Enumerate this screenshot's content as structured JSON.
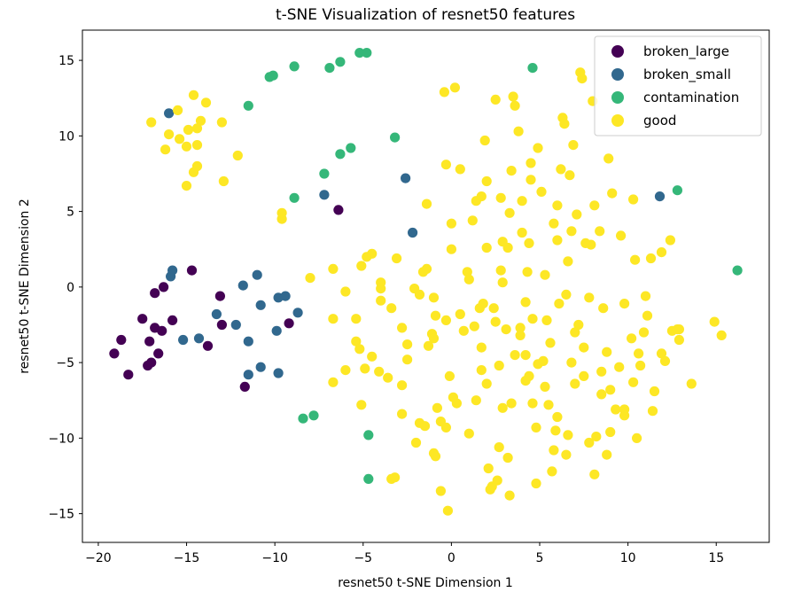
{
  "chart_data": {
    "type": "scatter",
    "title": "t-SNE Visualization of resnet50 features",
    "xlabel": "resnet50 t-SNE Dimension 1",
    "ylabel": "resnet50 t-SNE Dimension 2",
    "xlim": [
      -20.9,
      18.0
    ],
    "ylim": [
      -16.9,
      17.0
    ],
    "xticks": [
      -20,
      -15,
      -10,
      -5,
      0,
      5,
      10,
      15
    ],
    "yticks": [
      -15,
      -10,
      -5,
      0,
      5,
      10,
      15
    ],
    "grid": false,
    "legend_position": "top-right",
    "series": [
      {
        "name": "broken_large",
        "color": "#440154",
        "points": [
          [
            -19.1,
            -4.4
          ],
          [
            -18.7,
            -3.5
          ],
          [
            -18.3,
            -5.8
          ],
          [
            -17.5,
            -2.1
          ],
          [
            -17.2,
            -5.2
          ],
          [
            -17.1,
            -3.6
          ],
          [
            -17.0,
            -5.0
          ],
          [
            -16.8,
            -2.7
          ],
          [
            -16.8,
            -0.4
          ],
          [
            -16.6,
            -4.4
          ],
          [
            -16.4,
            -2.9
          ],
          [
            -16.3,
            0.0
          ],
          [
            -15.8,
            -2.2
          ],
          [
            -14.7,
            1.1
          ],
          [
            -13.8,
            -3.9
          ],
          [
            -13.1,
            -0.6
          ],
          [
            -13.0,
            -2.5
          ],
          [
            -11.7,
            -6.6
          ],
          [
            -9.2,
            -2.4
          ],
          [
            -6.4,
            5.1
          ]
        ]
      },
      {
        "name": "broken_small",
        "color": "#31688e",
        "points": [
          [
            -16.0,
            11.5
          ],
          [
            -15.9,
            0.7
          ],
          [
            -15.8,
            1.1
          ],
          [
            -15.2,
            -3.5
          ],
          [
            -14.3,
            -3.4
          ],
          [
            -13.3,
            -1.8
          ],
          [
            -12.2,
            -2.5
          ],
          [
            -11.8,
            0.1
          ],
          [
            -11.5,
            -3.6
          ],
          [
            -11.5,
            -5.8
          ],
          [
            -11.0,
            0.8
          ],
          [
            -10.8,
            -1.2
          ],
          [
            -10.8,
            -5.3
          ],
          [
            -9.9,
            -2.9
          ],
          [
            -9.8,
            -5.7
          ],
          [
            -9.8,
            -0.7
          ],
          [
            -9.4,
            -0.6
          ],
          [
            -8.7,
            -1.7
          ],
          [
            -7.2,
            6.1
          ],
          [
            -2.6,
            7.2
          ],
          [
            -2.2,
            3.6
          ],
          [
            11.8,
            6.0
          ]
        ]
      },
      {
        "name": "contamination",
        "color": "#35b779",
        "points": [
          [
            -11.5,
            12.0
          ],
          [
            -10.3,
            13.9
          ],
          [
            -10.1,
            14.0
          ],
          [
            -8.9,
            14.6
          ],
          [
            -8.9,
            5.9
          ],
          [
            -8.4,
            -8.7
          ],
          [
            -7.8,
            -8.5
          ],
          [
            -7.2,
            7.5
          ],
          [
            -6.9,
            14.5
          ],
          [
            -6.3,
            8.8
          ],
          [
            -6.3,
            14.9
          ],
          [
            -5.7,
            9.2
          ],
          [
            -5.2,
            15.5
          ],
          [
            -4.8,
            15.5
          ],
          [
            -4.7,
            -9.8
          ],
          [
            -4.7,
            -12.7
          ],
          [
            -3.2,
            9.9
          ],
          [
            4.6,
            14.5
          ],
          [
            12.8,
            6.4
          ],
          [
            16.2,
            1.1
          ]
        ]
      },
      {
        "name": "good",
        "color": "#fde725",
        "points": [
          [
            -17.0,
            10.9
          ],
          [
            -16.2,
            9.1
          ],
          [
            -16.0,
            10.1
          ],
          [
            -15.5,
            11.7
          ],
          [
            -15.4,
            9.8
          ],
          [
            -15.0,
            6.7
          ],
          [
            -15.0,
            9.3
          ],
          [
            -14.9,
            10.4
          ],
          [
            -14.6,
            12.7
          ],
          [
            -14.4,
            9.4
          ],
          [
            -14.4,
            10.5
          ],
          [
            -14.6,
            7.6
          ],
          [
            -14.4,
            8.0
          ],
          [
            -14.2,
            11.0
          ],
          [
            -13.9,
            12.2
          ],
          [
            -13.0,
            10.9
          ],
          [
            -12.9,
            7.0
          ],
          [
            -12.1,
            8.7
          ],
          [
            -9.6,
            4.5
          ],
          [
            -9.6,
            4.9
          ],
          [
            -8.0,
            0.6
          ],
          [
            -6.7,
            -2.1
          ],
          [
            -6.7,
            1.2
          ],
          [
            -6.7,
            -6.3
          ],
          [
            -6.0,
            -5.5
          ],
          [
            -6.0,
            -0.3
          ],
          [
            -5.4,
            -2.1
          ],
          [
            -5.4,
            -3.6
          ],
          [
            -5.2,
            -4.1
          ],
          [
            -5.1,
            1.4
          ],
          [
            -5.1,
            -7.8
          ],
          [
            -4.9,
            -5.4
          ],
          [
            -4.8,
            2.0
          ],
          [
            -4.5,
            2.2
          ],
          [
            -4.5,
            -4.6
          ],
          [
            -4.1,
            -5.6
          ],
          [
            -4.0,
            -0.1
          ],
          [
            -4.0,
            0.3
          ],
          [
            -4.0,
            -0.9
          ],
          [
            -3.4,
            -1.4
          ],
          [
            -3.4,
            -12.7
          ],
          [
            -3.1,
            1.9
          ],
          [
            -3.2,
            -12.6
          ],
          [
            -2.8,
            -2.7
          ],
          [
            -2.8,
            -8.4
          ],
          [
            -2.5,
            -4.8
          ],
          [
            -2.5,
            -3.8
          ],
          [
            -2.1,
            -0.1
          ],
          [
            -1.8,
            -9.0
          ],
          [
            -1.6,
            1.0
          ],
          [
            -1.5,
            -9.2
          ],
          [
            -1.4,
            5.5
          ],
          [
            -1.4,
            1.2
          ],
          [
            -1.3,
            -3.9
          ],
          [
            -1.1,
            -3.1
          ],
          [
            -1.0,
            -3.4
          ],
          [
            -1.0,
            -0.7
          ],
          [
            -1.0,
            -11.0
          ],
          [
            -0.9,
            -11.2
          ],
          [
            -0.8,
            -8.0
          ],
          [
            -0.6,
            -13.5
          ],
          [
            -0.4,
            12.9
          ],
          [
            -0.3,
            8.1
          ],
          [
            -0.3,
            -2.2
          ],
          [
            -0.3,
            -9.3
          ],
          [
            -0.2,
            -14.8
          ],
          [
            -0.1,
            -5.9
          ],
          [
            0.0,
            4.2
          ],
          [
            0.1,
            -7.3
          ],
          [
            0.2,
            13.2
          ],
          [
            0.3,
            -7.7
          ],
          [
            0.5,
            7.8
          ],
          [
            0.7,
            -2.9
          ],
          [
            0.9,
            1.0
          ],
          [
            1.0,
            0.5
          ],
          [
            1.0,
            -9.7
          ],
          [
            1.2,
            4.4
          ],
          [
            1.4,
            5.7
          ],
          [
            1.6,
            -1.4
          ],
          [
            1.7,
            6.0
          ],
          [
            1.7,
            -4.0
          ],
          [
            1.9,
            9.7
          ],
          [
            2.0,
            2.6
          ],
          [
            2.0,
            -6.4
          ],
          [
            2.1,
            -12.0
          ],
          [
            2.2,
            -13.4
          ],
          [
            2.3,
            -13.2
          ],
          [
            2.5,
            12.4
          ],
          [
            2.5,
            -2.3
          ],
          [
            2.6,
            -12.8
          ],
          [
            2.7,
            -5.2
          ],
          [
            2.8,
            5.9
          ],
          [
            2.8,
            1.1
          ],
          [
            2.9,
            0.3
          ],
          [
            2.9,
            3.0
          ],
          [
            3.1,
            -2.8
          ],
          [
            3.2,
            -11.3
          ],
          [
            3.3,
            -13.8
          ],
          [
            3.4,
            7.7
          ],
          [
            3.4,
            -7.7
          ],
          [
            3.5,
            12.6
          ],
          [
            3.6,
            12.0
          ],
          [
            3.8,
            10.3
          ],
          [
            3.9,
            -3.2
          ],
          [
            4.0,
            3.6
          ],
          [
            4.2,
            -4.5
          ],
          [
            4.2,
            -1.0
          ],
          [
            4.3,
            1.0
          ],
          [
            4.4,
            2.9
          ],
          [
            4.4,
            -5.9
          ],
          [
            4.5,
            7.1
          ],
          [
            4.6,
            -2.1
          ],
          [
            4.6,
            -7.7
          ],
          [
            4.8,
            -9.3
          ],
          [
            4.9,
            9.2
          ],
          [
            4.9,
            -5.1
          ],
          [
            5.1,
            6.3
          ],
          [
            5.3,
            0.8
          ],
          [
            5.4,
            -2.2
          ],
          [
            5.5,
            -7.8
          ],
          [
            5.7,
            -12.2
          ],
          [
            5.8,
            -10.8
          ],
          [
            5.8,
            4.2
          ],
          [
            6.0,
            3.1
          ],
          [
            6.0,
            5.4
          ],
          [
            6.1,
            -1.1
          ],
          [
            6.2,
            7.8
          ],
          [
            6.3,
            11.2
          ],
          [
            6.4,
            10.8
          ],
          [
            6.5,
            -11.1
          ],
          [
            6.6,
            1.7
          ],
          [
            6.7,
            7.4
          ],
          [
            6.8,
            3.7
          ],
          [
            6.9,
            9.4
          ],
          [
            7.0,
            -6.4
          ],
          [
            7.1,
            4.8
          ],
          [
            7.3,
            14.2
          ],
          [
            7.4,
            13.8
          ],
          [
            7.5,
            -5.9
          ],
          [
            7.6,
            2.9
          ],
          [
            7.8,
            -0.7
          ],
          [
            7.8,
            -10.3
          ],
          [
            7.9,
            2.8
          ],
          [
            8.0,
            12.3
          ],
          [
            8.1,
            -12.4
          ],
          [
            8.1,
            5.4
          ],
          [
            8.2,
            -9.9
          ],
          [
            8.4,
            3.7
          ],
          [
            8.5,
            -7.1
          ],
          [
            8.6,
            -1.4
          ],
          [
            8.8,
            -11.1
          ],
          [
            8.9,
            8.5
          ],
          [
            9.0,
            -6.8
          ],
          [
            9.0,
            -9.6
          ],
          [
            9.3,
            -8.1
          ],
          [
            9.5,
            -5.3
          ],
          [
            9.6,
            3.4
          ],
          [
            9.8,
            -8.5
          ],
          [
            9.8,
            -8.1
          ],
          [
            10.3,
            5.8
          ],
          [
            10.3,
            -6.3
          ],
          [
            10.4,
            1.8
          ],
          [
            10.5,
            -10.0
          ],
          [
            10.6,
            -4.4
          ],
          [
            10.7,
            -5.2
          ],
          [
            11.0,
            -0.6
          ],
          [
            11.1,
            -1.9
          ],
          [
            11.3,
            1.9
          ],
          [
            11.4,
            -8.2
          ],
          [
            11.5,
            -6.9
          ],
          [
            11.9,
            2.3
          ],
          [
            11.9,
            -4.4
          ],
          [
            12.1,
            -4.9
          ],
          [
            12.4,
            3.1
          ],
          [
            12.5,
            -2.9
          ],
          [
            12.8,
            -2.8
          ],
          [
            12.9,
            -3.5
          ],
          [
            12.9,
            -2.8
          ],
          [
            13.6,
            -6.4
          ],
          [
            14.9,
            -2.3
          ],
          [
            15.3,
            -3.2
          ],
          [
            0.5,
            -1.8
          ],
          [
            1.8,
            -1.1
          ],
          [
            3.6,
            -4.5
          ],
          [
            5.2,
            -4.9
          ],
          [
            6.5,
            -0.5
          ],
          [
            7.5,
            -4.0
          ],
          [
            9.1,
            6.2
          ],
          [
            -1.8,
            -0.5
          ],
          [
            -2.8,
            -6.5
          ],
          [
            2.4,
            -1.4
          ],
          [
            3.2,
            2.6
          ],
          [
            4.2,
            -6.2
          ],
          [
            5.9,
            -9.5
          ],
          [
            6.6,
            -9.8
          ],
          [
            -0.9,
            -1.9
          ],
          [
            1.3,
            -2.6
          ],
          [
            8.5,
            -5.6
          ],
          [
            10.2,
            -3.4
          ],
          [
            0.0,
            2.5
          ],
          [
            2.9,
            -8.0
          ],
          [
            3.3,
            4.9
          ],
          [
            5.3,
            -6.6
          ],
          [
            7.0,
            -3.0
          ],
          [
            -3.6,
            -6.0
          ],
          [
            4.5,
            8.2
          ],
          [
            1.7,
            -5.5
          ],
          [
            6.8,
            -5.0
          ],
          [
            9.8,
            -1.1
          ],
          [
            2.0,
            7.0
          ],
          [
            4.0,
            5.7
          ],
          [
            7.2,
            -2.5
          ],
          [
            -2.0,
            -10.3
          ],
          [
            1.4,
            -7.5
          ],
          [
            3.9,
            -2.7
          ],
          [
            5.6,
            -3.7
          ],
          [
            -0.6,
            -8.9
          ],
          [
            2.7,
            -10.6
          ],
          [
            4.8,
            -13.0
          ],
          [
            6.0,
            -8.6
          ],
          [
            8.8,
            -4.3
          ],
          [
            10.9,
            -3.0
          ]
        ]
      }
    ]
  }
}
